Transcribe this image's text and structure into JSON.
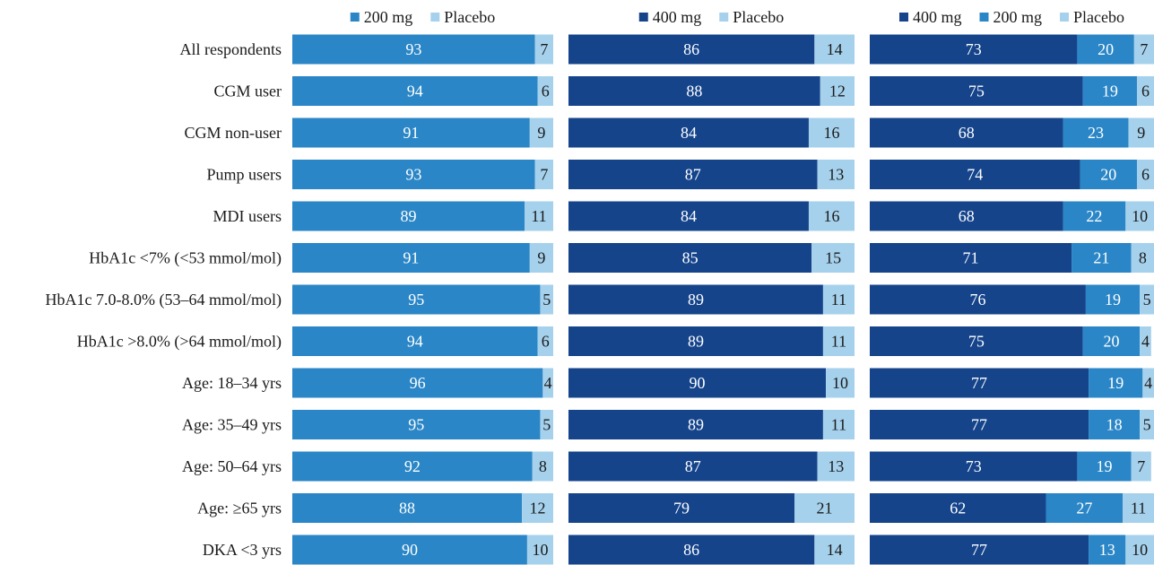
{
  "colors": {
    "dose_400": "#15448B",
    "dose_200": "#2A86C6",
    "placebo": "#A6D1EC"
  },
  "chart_data": [
    {
      "type": "bar",
      "orientation": "horizontal",
      "stacked": true,
      "legend_position": "top",
      "categories": [
        "All respondents",
        "CGM user",
        "CGM non-user",
        "Pump users",
        "MDI users",
        "HbA1c <7% (<53 mmol/mol)",
        "HbA1c 7.0-8.0% (53–64 mmol/mol)",
        "HbA1c >8.0% (>64 mmol/mol)",
        "Age: 18–34 yrs",
        "Age: 35–49 yrs",
        "Age: 50–64 yrs",
        "Age: ≥65 yrs",
        "DKA <3 yrs"
      ],
      "series": [
        {
          "name": "200 mg",
          "color": "#2A86C6",
          "values": [
            93,
            94,
            91,
            93,
            89,
            91,
            95,
            94,
            96,
            95,
            92,
            88,
            90
          ]
        },
        {
          "name": "Placebo",
          "color": "#A6D1EC",
          "values": [
            7,
            6,
            9,
            7,
            11,
            9,
            5,
            6,
            4,
            5,
            8,
            12,
            10
          ]
        }
      ],
      "xlim": [
        0,
        100
      ]
    },
    {
      "type": "bar",
      "orientation": "horizontal",
      "stacked": true,
      "legend_position": "top",
      "series": [
        {
          "name": "400 mg",
          "color": "#15448B",
          "values": [
            86,
            88,
            84,
            87,
            84,
            85,
            89,
            89,
            90,
            89,
            87,
            79,
            86
          ]
        },
        {
          "name": "Placebo",
          "color": "#A6D1EC",
          "values": [
            14,
            12,
            16,
            13,
            16,
            15,
            11,
            11,
            10,
            11,
            13,
            21,
            14
          ]
        }
      ],
      "xlim": [
        0,
        100
      ]
    },
    {
      "type": "bar",
      "orientation": "horizontal",
      "stacked": true,
      "legend_position": "top",
      "series": [
        {
          "name": "400 mg",
          "color": "#15448B",
          "values": [
            73,
            75,
            68,
            74,
            68,
            71,
            76,
            75,
            77,
            77,
            73,
            62,
            77
          ]
        },
        {
          "name": "200 mg",
          "color": "#2A86C6",
          "values": [
            20,
            19,
            23,
            20,
            22,
            21,
            19,
            20,
            19,
            18,
            19,
            27,
            13
          ]
        },
        {
          "name": "Placebo",
          "color": "#A6D1EC",
          "values": [
            7,
            6,
            9,
            6,
            10,
            8,
            5,
            4,
            4,
            5,
            7,
            11,
            10
          ]
        }
      ],
      "xlim": [
        0,
        100
      ]
    }
  ]
}
